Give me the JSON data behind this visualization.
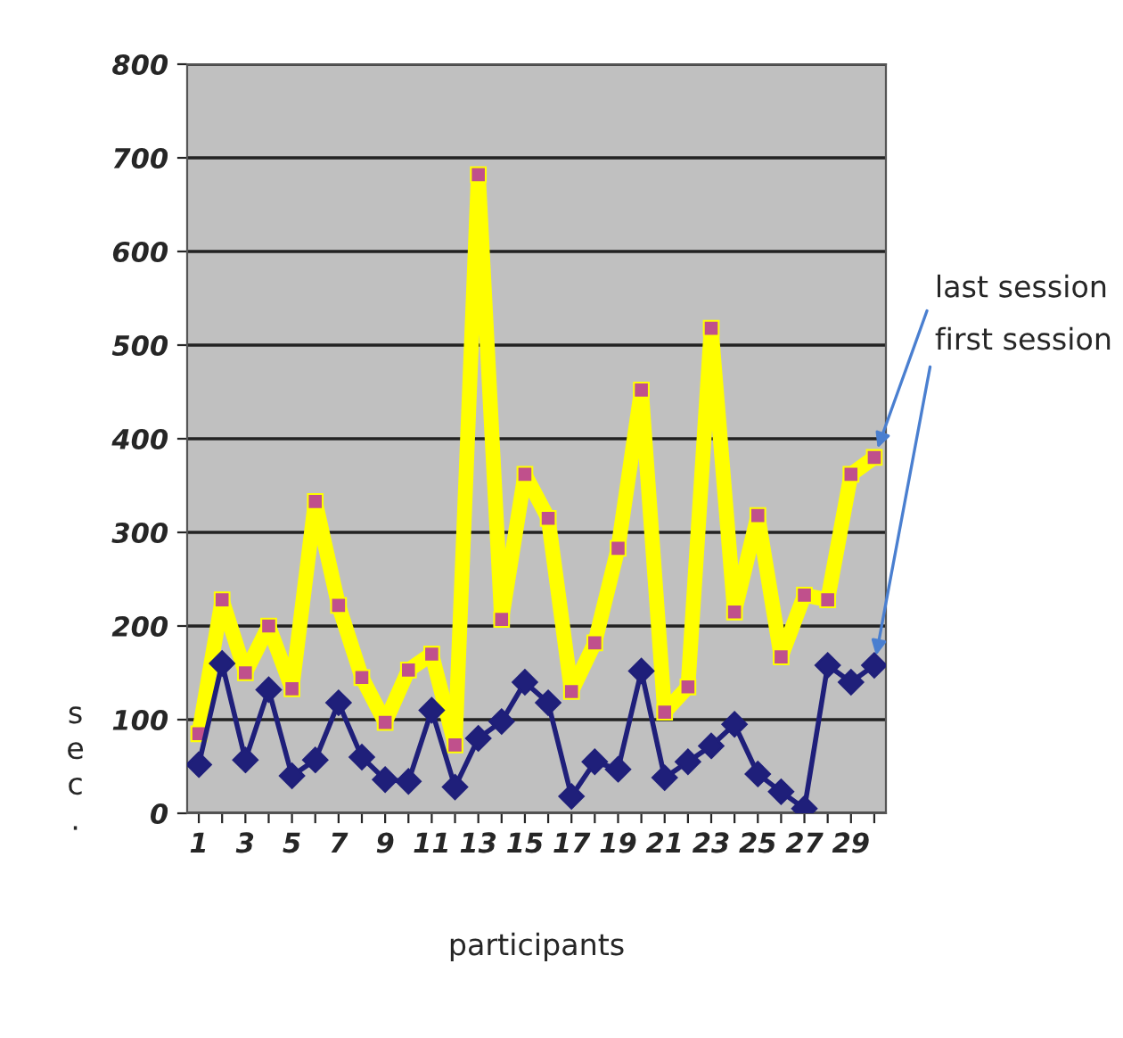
{
  "chart_data": {
    "type": "line",
    "xlabel": "participants",
    "ylabel": "sec.",
    "categories": [
      "1",
      null,
      "3",
      null,
      "5",
      null,
      "7",
      null,
      "9",
      null,
      "11",
      null,
      "13",
      null,
      "15",
      null,
      "17",
      null,
      "19",
      null,
      "21",
      null,
      "23",
      null,
      "25",
      null,
      "27",
      null,
      "29",
      null
    ],
    "series": [
      {
        "name": "last session",
        "color": "#ffff00",
        "marker": "square",
        "values": [
          85,
          228,
          150,
          200,
          133,
          333,
          222,
          145,
          97,
          153,
          170,
          73,
          682,
          207,
          362,
          315,
          130,
          182,
          283,
          452,
          108,
          135,
          518,
          215,
          318,
          167,
          233,
          228,
          362,
          380
        ]
      },
      {
        "name": "first session",
        "color": "#1f1f7a",
        "marker": "diamond",
        "values": [
          52,
          160,
          57,
          132,
          40,
          57,
          118,
          60,
          36,
          34,
          110,
          28,
          80,
          98,
          140,
          118,
          18,
          55,
          47,
          152,
          38,
          55,
          72,
          95,
          42,
          23,
          5,
          158,
          140,
          158
        ]
      }
    ],
    "ylim": [
      0,
      800
    ],
    "yticks": [
      0,
      100,
      200,
      300,
      400,
      500,
      600,
      700,
      800
    ],
    "grid": "y",
    "legend": false
  }
}
